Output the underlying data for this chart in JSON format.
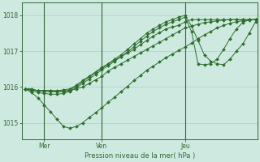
{
  "bg_color": "#ceeae0",
  "grid_color": "#aacfbe",
  "line_color": "#2d6e2d",
  "marker_color": "#2d6e2d",
  "axis_color": "#336633",
  "text_color": "#336633",
  "xlabel": "Pression niveau de la mer( hPa )",
  "ylim": [
    1014.55,
    1018.35
  ],
  "yticks": [
    1015,
    1016,
    1017,
    1018
  ],
  "xtick_labels": [
    "Mer",
    "Ven",
    "Jeu"
  ],
  "xtick_positions": [
    12,
    48,
    100
  ],
  "vline_positions": [
    12,
    48,
    100
  ],
  "total_points": 145,
  "series": [
    {
      "x": [
        0,
        4,
        8,
        12,
        16,
        20,
        24,
        28,
        32,
        36,
        40,
        44,
        48,
        52,
        56,
        60,
        64,
        68,
        72,
        76,
        80,
        84,
        88,
        92,
        96,
        100,
        104,
        108,
        112,
        116,
        120,
        124,
        128,
        132,
        136,
        140,
        144
      ],
      "y": [
        1015.95,
        1015.95,
        1015.9,
        1015.9,
        1015.9,
        1015.88,
        1015.88,
        1015.9,
        1015.95,
        1016.0,
        1016.1,
        1016.2,
        1016.3,
        1016.45,
        1016.55,
        1016.65,
        1016.75,
        1016.85,
        1016.95,
        1017.05,
        1017.15,
        1017.25,
        1017.35,
        1017.45,
        1017.55,
        1017.65,
        1017.7,
        1017.75,
        1017.8,
        1017.82,
        1017.85,
        1017.87,
        1017.88,
        1017.88,
        1017.88,
        1017.88,
        1017.88
      ]
    },
    {
      "x": [
        0,
        4,
        8,
        12,
        16,
        20,
        24,
        28,
        32,
        36,
        40,
        44,
        48,
        52,
        56,
        60,
        64,
        68,
        72,
        76,
        80,
        84,
        88,
        92,
        96,
        100,
        104,
        108,
        112,
        116,
        120,
        124,
        128,
        132,
        136,
        140,
        144
      ],
      "y": [
        1015.95,
        1015.85,
        1015.7,
        1015.5,
        1015.3,
        1015.1,
        1014.9,
        1014.85,
        1014.9,
        1015.0,
        1015.15,
        1015.28,
        1015.42,
        1015.58,
        1015.72,
        1015.87,
        1016.02,
        1016.18,
        1016.32,
        1016.47,
        1016.58,
        1016.7,
        1016.82,
        1016.92,
        1017.02,
        1017.12,
        1017.22,
        1017.35,
        1017.45,
        1017.55,
        1017.65,
        1017.72,
        1017.78,
        1017.82,
        1017.85,
        1017.87,
        1017.88
      ]
    },
    {
      "x": [
        0,
        4,
        8,
        12,
        16,
        20,
        24,
        28,
        32,
        36,
        40,
        44,
        48,
        52,
        56,
        60,
        64,
        68,
        72,
        76,
        80,
        84,
        88,
        92,
        96,
        100,
        104,
        108,
        112,
        116,
        120,
        124,
        128,
        132,
        136,
        140,
        144
      ],
      "y": [
        1015.95,
        1015.92,
        1015.9,
        1015.9,
        1015.9,
        1015.9,
        1015.92,
        1015.95,
        1016.05,
        1016.18,
        1016.3,
        1016.42,
        1016.55,
        1016.65,
        1016.75,
        1016.85,
        1016.95,
        1017.05,
        1017.18,
        1017.3,
        1017.42,
        1017.52,
        1017.62,
        1017.68,
        1017.72,
        1017.82,
        1017.88,
        1017.88,
        1017.88,
        1017.88,
        1017.88,
        1017.88,
        1017.88,
        1017.88,
        1017.88,
        1017.88,
        1017.88
      ]
    },
    {
      "x": [
        0,
        4,
        8,
        12,
        16,
        20,
        24,
        28,
        32,
        36,
        40,
        44,
        48,
        52,
        56,
        60,
        64,
        68,
        72,
        76,
        80,
        84,
        88,
        92,
        96,
        100,
        104,
        108,
        112,
        116,
        120,
        124,
        128,
        132,
        136,
        140,
        144
      ],
      "y": [
        1015.95,
        1015.92,
        1015.9,
        1015.88,
        1015.87,
        1015.87,
        1015.88,
        1015.92,
        1016.02,
        1016.15,
        1016.28,
        1016.4,
        1016.52,
        1016.65,
        1016.78,
        1016.9,
        1017.05,
        1017.2,
        1017.35,
        1017.5,
        1017.62,
        1017.72,
        1017.82,
        1017.88,
        1017.95,
        1018.0,
        1017.7,
        1017.3,
        1016.9,
        1016.72,
        1016.65,
        1016.62,
        1016.78,
        1017.0,
        1017.2,
        1017.5,
        1017.82
      ]
    },
    {
      "x": [
        0,
        4,
        8,
        12,
        16,
        20,
        24,
        28,
        32,
        36,
        40,
        44,
        48,
        52,
        56,
        60,
        64,
        68,
        72,
        76,
        80,
        84,
        88,
        92,
        96,
        100,
        104,
        108,
        112,
        116,
        120,
        124,
        128,
        132,
        136,
        140,
        144
      ],
      "y": [
        1015.95,
        1015.9,
        1015.85,
        1015.82,
        1015.8,
        1015.8,
        1015.82,
        1015.88,
        1015.98,
        1016.1,
        1016.22,
        1016.35,
        1016.48,
        1016.6,
        1016.72,
        1016.85,
        1016.98,
        1017.12,
        1017.28,
        1017.42,
        1017.55,
        1017.65,
        1017.75,
        1017.82,
        1017.88,
        1017.95,
        1017.55,
        1016.65,
        1016.62,
        1016.65,
        1016.78,
        1017.05,
        1017.35,
        1017.62,
        1017.8,
        1017.88,
        1017.88
      ]
    }
  ]
}
